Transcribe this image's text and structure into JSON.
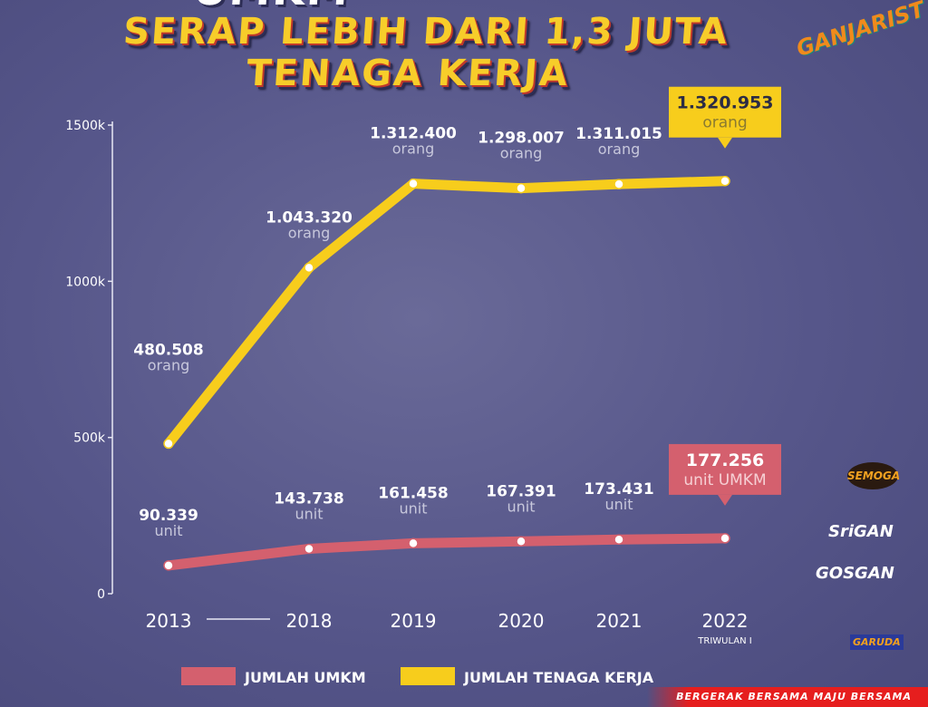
{
  "header": {
    "title_line1": "UMKM",
    "title_line2": "SERAP LEBIH DARI 1,3 JUTA",
    "title_line3": "TENAGA KERJA"
  },
  "logos": {
    "top_right": "GANJARIST",
    "side": [
      "SEMOGA",
      "SriGAN",
      "GOSGAN",
      "GARUDA"
    ]
  },
  "footer": {
    "tagline": "BERGERAK BERSAMA MAJU BERSAMA"
  },
  "colors": {
    "tenaga_kerja": "#f7cd1c",
    "umkm": "#d4606e",
    "background": "#56568a"
  },
  "chart_data": {
    "type": "line",
    "categories": [
      "2013",
      "2018",
      "2019",
      "2020",
      "2021",
      "2022"
    ],
    "category_sublabels": [
      "",
      "",
      "",
      "",
      "",
      "TRIWULAN I"
    ],
    "ylim": [
      0,
      1500000
    ],
    "yticks": [
      0,
      500000,
      1000000,
      1500000
    ],
    "ytick_labels": [
      "0",
      "500k",
      "1000k",
      "1500k"
    ],
    "grid": false,
    "legend_position": "bottom",
    "series": [
      {
        "name": "JUMLAH TENAGA KERJA",
        "color": "#f7cd1c",
        "values": [
          480508,
          1043320,
          1312400,
          1298007,
          1311015,
          1320953
        ],
        "labels": [
          "480.508",
          "1.043.320",
          "1.312.400",
          "1.298.007",
          "1.311.015",
          "1.320.953"
        ],
        "unit": "orang"
      },
      {
        "name": "JUMLAH UMKM",
        "color": "#d4606e",
        "values": [
          90339,
          143738,
          161458,
          167391,
          173431,
          177256
        ],
        "labels": [
          "90.339",
          "143.738",
          "161.458",
          "167.391",
          "173.431",
          "177.256"
        ],
        "unit": "unit",
        "last_unit": "unit UMKM"
      }
    ]
  }
}
